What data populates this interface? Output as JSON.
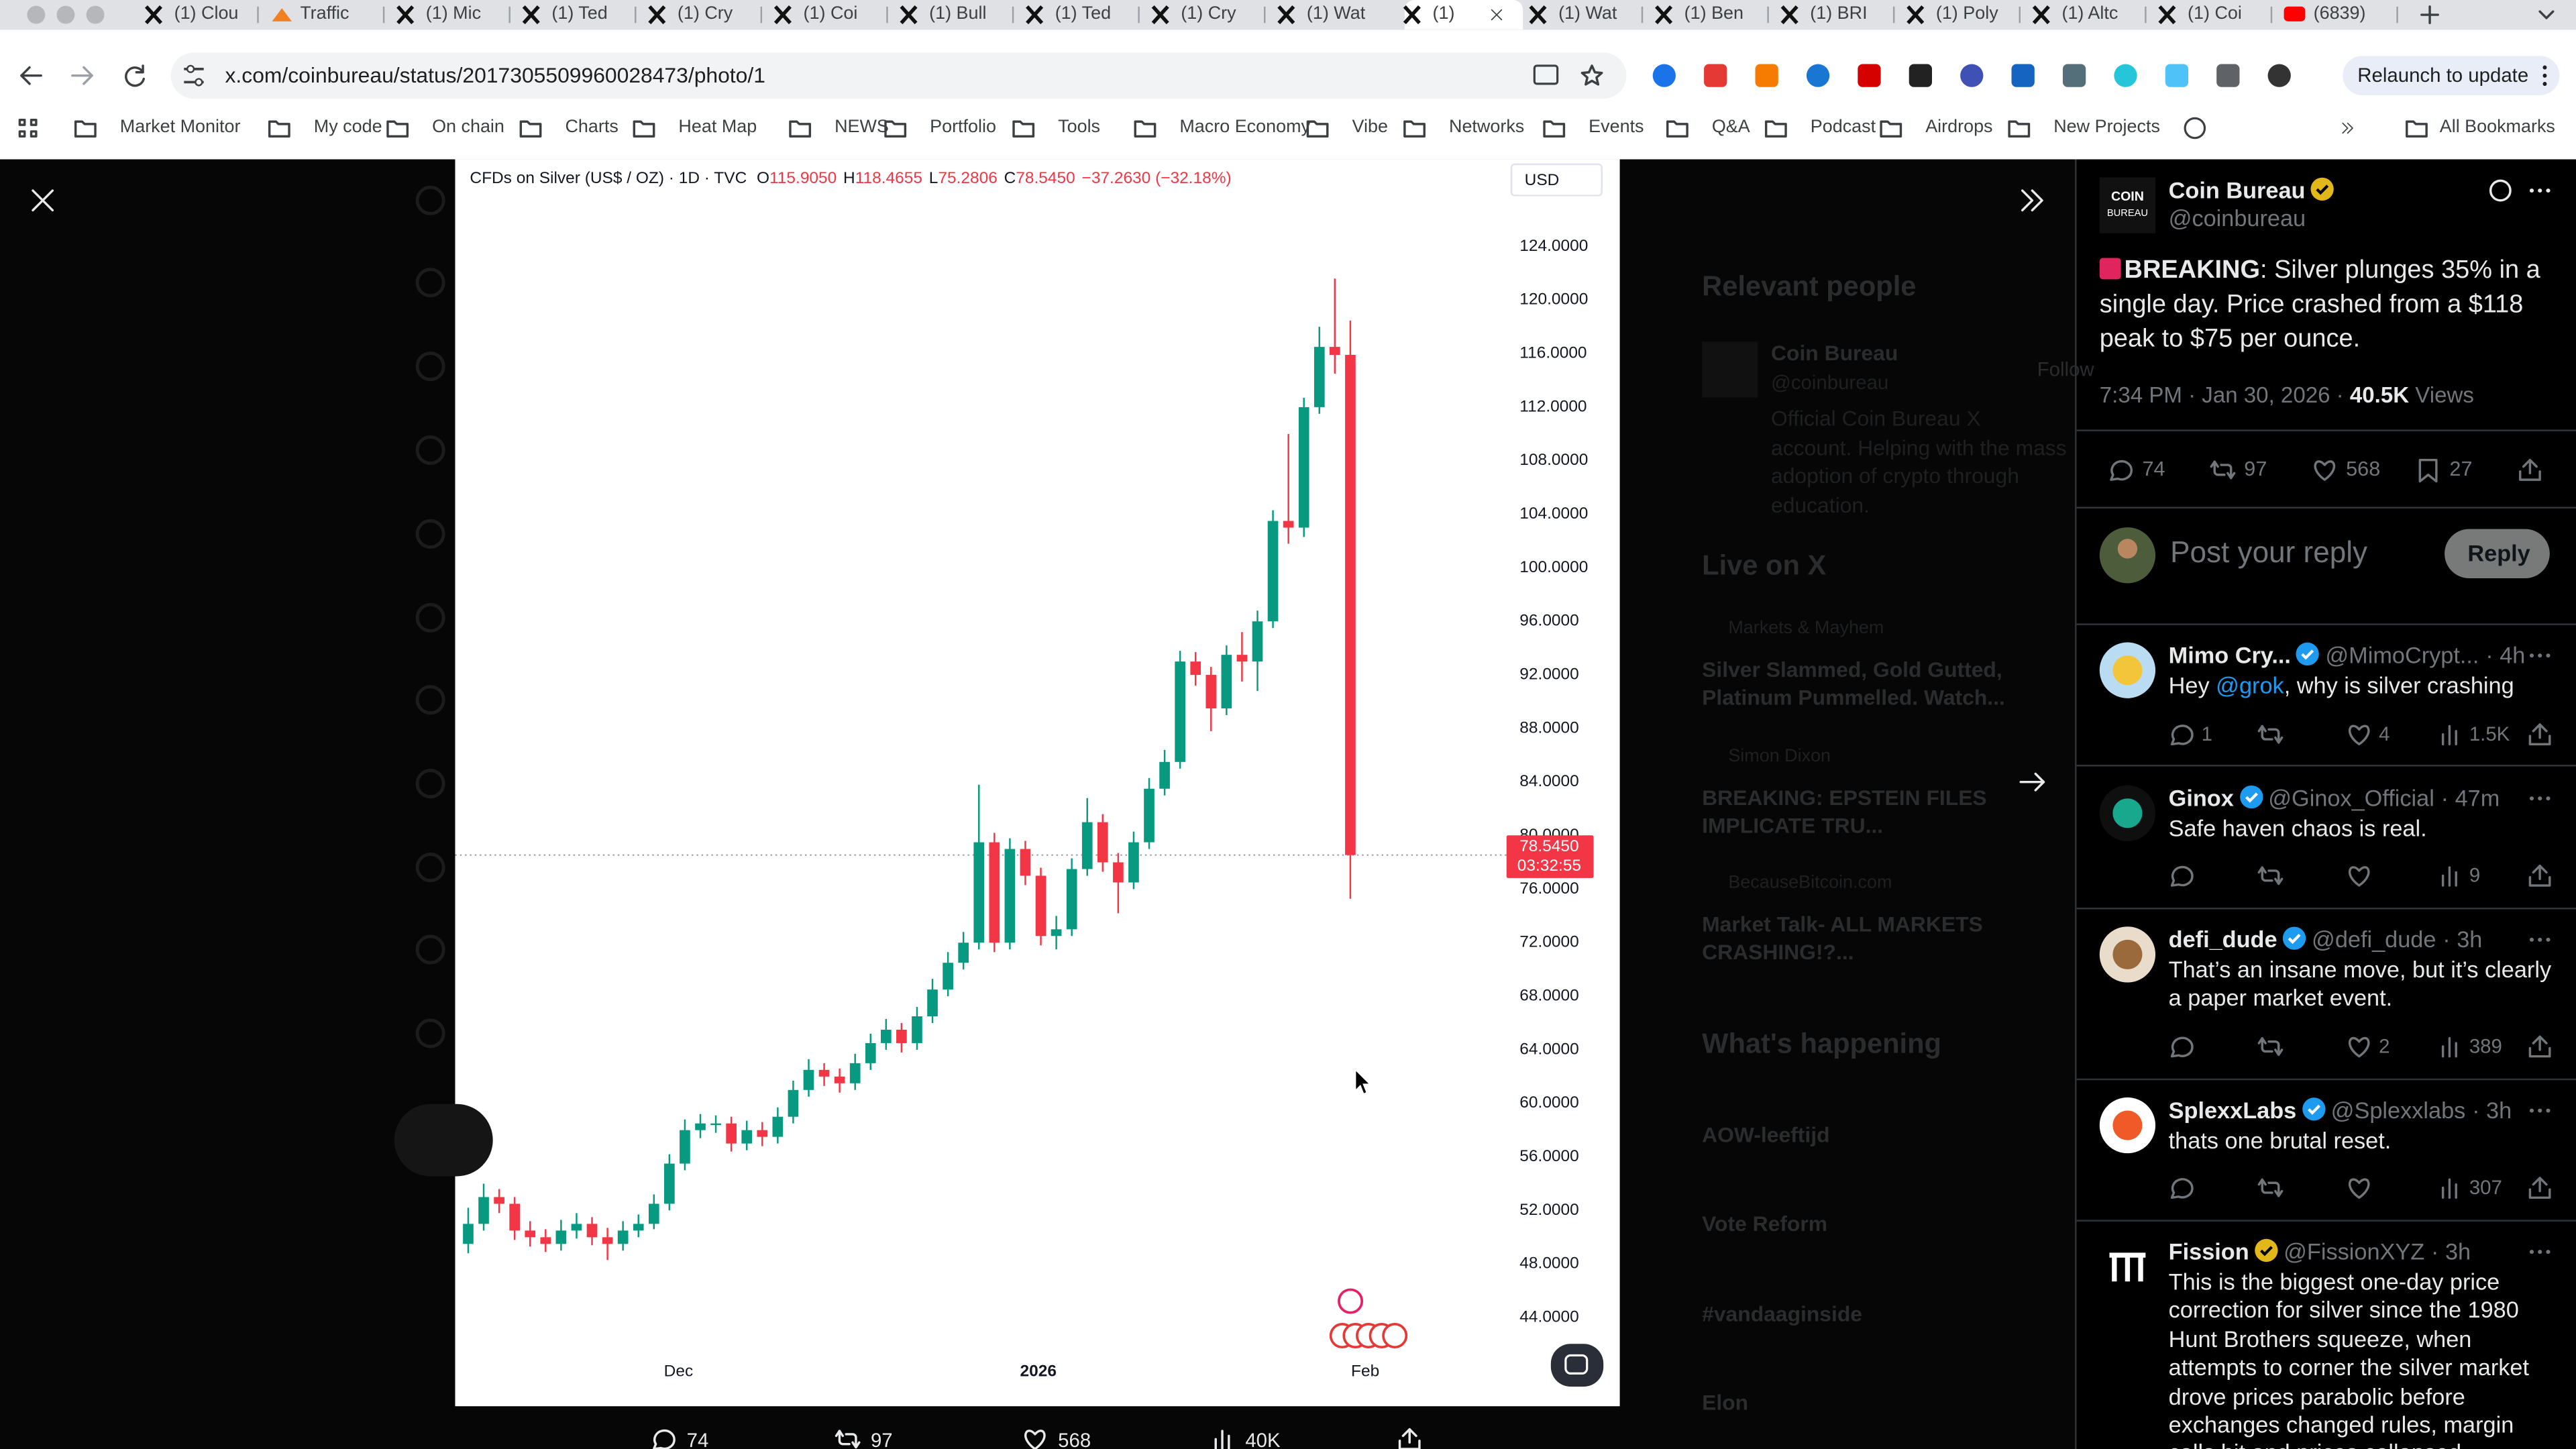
{
  "tabs": [
    "(1) Clou",
    "Traffic",
    "(1) Mic",
    "(1) Ted",
    "(1) Cry",
    "(1) Coi",
    "(1) Bull",
    "(1) Ted",
    "(1) Cry",
    "(1) Wat",
    "(1)",
    "(1) Wat",
    "(1) Ben",
    "(1) BRI",
    "(1) Poly",
    "(1) Altc",
    "(1) Coi",
    "(6839)"
  ],
  "address": "x.com/coinbureau/status/2017305509960028473/photo/1",
  "relaunch": "Relaunch to update",
  "bookmarks": [
    "Market Monitor",
    "My code",
    "On chain",
    "Charts",
    "Heat Map",
    "NEWS",
    "Portfolio",
    "Tools",
    "Macro Economy",
    "Vibe",
    "Networks",
    "Events",
    "Q&A",
    "Podcast",
    "Airdrops",
    "New Projects"
  ],
  "all_bookmarks": "All Bookmarks",
  "chart": {
    "type": "candlestick",
    "title": "CFDs on Silver (US$ / OZ) · 1D · TVC",
    "ohlc": [
      {
        "label": "O",
        "value": "115.9050"
      },
      {
        "label": "H",
        "value": "118.4655"
      },
      {
        "label": "L",
        "value": "75.2806"
      },
      {
        "label": "C",
        "value": "78.5450"
      }
    ],
    "change": "−37.2630 (−32.18%)",
    "currency": "USD",
    "last_price": "78.5450",
    "countdown": "03:32:55",
    "x_labels": [
      "Dec",
      "2026",
      "Feb"
    ],
    "up_color": "#089981",
    "down_color": "#f23645",
    "ylim": [
      42,
      127.5
    ],
    "yticks": [
      {
        "value": 44,
        "label": "44.0000"
      },
      {
        "value": 48,
        "label": "48.0000"
      },
      {
        "value": 52,
        "label": "52.0000"
      },
      {
        "value": 56,
        "label": "56.0000"
      },
      {
        "value": 60,
        "label": "60.0000"
      },
      {
        "value": 64,
        "label": "64.0000"
      },
      {
        "value": 68,
        "label": "68.0000"
      },
      {
        "value": 72,
        "label": "72.0000"
      },
      {
        "value": 76,
        "label": "76.0000"
      },
      {
        "value": 80,
        "label": "80.0000"
      },
      {
        "value": 84,
        "label": "84.0000"
      },
      {
        "value": 88,
        "label": "88.0000"
      },
      {
        "value": 92,
        "label": "92.0000"
      },
      {
        "value": 96,
        "label": "96.0000"
      },
      {
        "value": 100,
        "label": "100.0000"
      },
      {
        "value": 104,
        "label": "104.0000"
      },
      {
        "value": 108,
        "label": "108.0000"
      },
      {
        "value": 112,
        "label": "112.0000"
      },
      {
        "value": 116,
        "label": "116.0000"
      },
      {
        "value": 120,
        "label": "120.0000"
      },
      {
        "value": 124,
        "label": "124.0000"
      }
    ],
    "candles": [
      [
        49.5,
        52.2,
        48.8,
        51
      ],
      [
        51,
        54,
        50.5,
        53
      ],
      [
        53,
        53.6,
        51.8,
        52.5
      ],
      [
        52.5,
        53,
        49.8,
        50.5
      ],
      [
        50.5,
        51.2,
        49.3,
        50
      ],
      [
        50,
        50.6,
        48.9,
        49.5
      ],
      [
        49.5,
        51.3,
        49,
        50.5
      ],
      [
        50.5,
        51.8,
        49.9,
        51
      ],
      [
        51,
        51.5,
        49.4,
        50
      ],
      [
        50,
        50.7,
        48.3,
        49.5
      ],
      [
        49.5,
        51.2,
        49,
        50.5
      ],
      [
        50.5,
        51.7,
        50,
        51
      ],
      [
        51,
        53.2,
        50.6,
        52.5
      ],
      [
        52.5,
        56.2,
        52,
        55.5
      ],
      [
        55.5,
        58.8,
        55,
        58
      ],
      [
        58,
        59.2,
        57.4,
        58.5
      ],
      [
        58.5,
        59.1,
        57.8,
        58.5
      ],
      [
        58.5,
        59,
        56.4,
        57
      ],
      [
        57,
        58.7,
        56.5,
        58
      ],
      [
        58,
        58.6,
        56.8,
        57.5
      ],
      [
        57.5,
        59.7,
        57,
        59
      ],
      [
        59,
        61.7,
        58.5,
        61
      ],
      [
        61,
        63.3,
        60.5,
        62.5
      ],
      [
        62.5,
        63,
        61.3,
        62
      ],
      [
        62,
        62.6,
        60.8,
        61.5
      ],
      [
        61.5,
        63.7,
        61,
        63
      ],
      [
        63,
        65.2,
        62.5,
        64.5
      ],
      [
        64.5,
        66.3,
        64,
        65.5
      ],
      [
        65.5,
        66,
        63.8,
        64.5
      ],
      [
        64.5,
        67.2,
        64,
        66.5
      ],
      [
        66.5,
        69.3,
        66,
        68.5
      ],
      [
        68.5,
        71.3,
        68,
        70.5
      ],
      [
        70.5,
        72.8,
        70,
        72
      ],
      [
        72,
        83.8,
        71.5,
        79.5
      ],
      [
        79.5,
        80.2,
        71.3,
        72
      ],
      [
        72,
        79.8,
        71.5,
        79
      ],
      [
        79,
        79.6,
        76.3,
        77
      ],
      [
        77,
        77.6,
        71.8,
        72.5
      ],
      [
        72.5,
        74,
        71.5,
        73
      ],
      [
        73,
        78.3,
        72.5,
        77.5
      ],
      [
        77.5,
        82.8,
        77,
        81
      ],
      [
        81,
        81.6,
        77.3,
        78
      ],
      [
        78,
        78.7,
        74.2,
        76.5
      ],
      [
        76.5,
        80.3,
        76,
        79.5
      ],
      [
        79.5,
        84.3,
        79,
        83.5
      ],
      [
        83.5,
        86.4,
        83,
        85.5
      ],
      [
        85.5,
        93.8,
        85,
        93
      ],
      [
        93,
        93.7,
        91.2,
        92
      ],
      [
        92,
        92.6,
        87.8,
        89.5
      ],
      [
        89.5,
        94.2,
        89,
        93.5
      ],
      [
        93.5,
        95.2,
        91.5,
        93
      ],
      [
        93,
        96.8,
        90.8,
        96
      ],
      [
        96,
        104.3,
        95.5,
        103.5
      ],
      [
        103.5,
        110,
        101.8,
        103
      ],
      [
        103,
        112.7,
        102.3,
        112
      ],
      [
        112,
        118,
        111.5,
        116.5
      ],
      [
        116.5,
        121.6,
        114.5,
        115.9
      ],
      [
        115.905,
        118.4655,
        75.2806,
        78.545
      ]
    ]
  },
  "bottom_bar": {
    "replies": "74",
    "reposts": "97",
    "likes": "568",
    "views": "40K"
  },
  "background": {
    "relevant_people": "Relevant people",
    "person_name": "Coin Bureau",
    "person_follow": "Follow",
    "person_handle": "@coinbureau",
    "person_bio": "Official Coin Bureau X account. Helping with the mass adoption of crypto through education.",
    "live": "Live on X",
    "live_items": [
      {
        "host": "Markets & Mayhem",
        "title": "Silver Slammed, Gold Gutted, Platinum Pummelled. Watch..."
      },
      {
        "host": "Simon Dixon",
        "title": "BREAKING: EPSTEIN FILES IMPLICATE TRU..."
      },
      {
        "host": "BecauseBitcoin.com",
        "title": "Market Talk- ALL MARKETS CRASHING!?..."
      }
    ],
    "happening": "What's happening",
    "trends": [
      "AOW-leeftijd",
      "Vote Reform",
      "#vandaaginside",
      "Elon"
    ]
  },
  "post": {
    "name": "Coin Bureau",
    "handle": "@coinbureau",
    "avatar_text": [
      "COIN",
      "BUREAU"
    ],
    "lead": "BREAKING",
    "text": ": Silver plunges 35% in a single day. Price crashed from a $118 peak to $75 per ounce.",
    "time": "7:34 PM · Jan 30, 2026 · ",
    "views": "40.5K",
    "views_label": " Views",
    "replies": "74",
    "reposts": "97",
    "likes": "568",
    "bookmarks": "27",
    "reply_placeholder": "Post your reply",
    "reply_button": "Reply"
  },
  "replies": [
    {
      "name": "Mimo Cry...",
      "handle": "@MimoCrypt...",
      "time": "· 4h",
      "text": [
        {
          "t": "Hey "
        },
        {
          "t": "@grok",
          "link": true
        },
        {
          "t": ", why is silver crashing"
        }
      ],
      "stats": {
        "replies": "1",
        "likes": "4",
        "views": "1.5K"
      }
    },
    {
      "name": "Ginox",
      "handle": "@Ginox_Official",
      "time": "· 47m",
      "text": [
        {
          "t": "Safe haven chaos is real."
        }
      ],
      "stats": {
        "views": "9"
      }
    },
    {
      "name": "defi_dude",
      "handle": "@defi_dude",
      "time": "· 3h",
      "text": [
        {
          "t": "That’s an insane move, but it’s clearly a paper market event."
        }
      ],
      "stats": {
        "likes": "2",
        "views": "389"
      }
    },
    {
      "name": "SplexxLabs",
      "handle": "@Splexxlabs",
      "time": "· 3h",
      "text": [
        {
          "t": "thats one brutal reset."
        }
      ],
      "stats": {
        "views": "307"
      }
    },
    {
      "name": "Fission",
      "handle": "@FissionXYZ",
      "time": "· 3h",
      "text": [
        {
          "t": "This is the biggest one-day price correction for silver since the 1980 Hunt Brothers squeeze, when attempts to corner the silver market drove prices parabolic before exchanges changed rules, margin calls hit and prices collapsed."
        }
      ],
      "stats": {}
    }
  ]
}
